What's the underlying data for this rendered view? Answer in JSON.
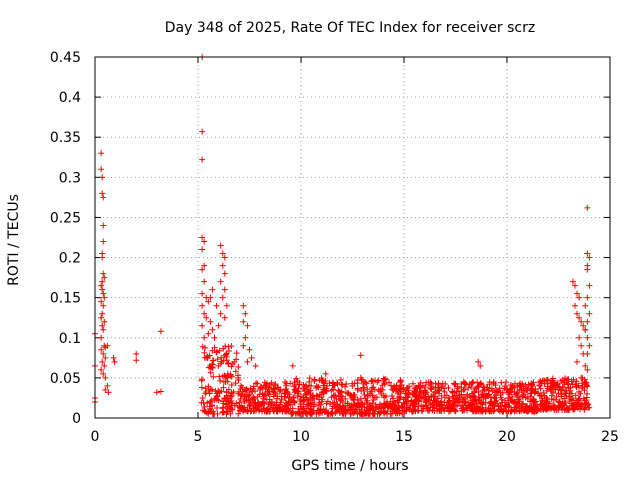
{
  "chart_data": {
    "type": "scatter",
    "title": "Day 348 of 2025, Rate Of TEC Index for receiver scrz",
    "xlabel": "GPS time / hours",
    "ylabel": "ROTI / TECUs",
    "xlim": [
      0,
      25
    ],
    "ylim": [
      0,
      0.45
    ],
    "xticks": [
      0,
      5,
      10,
      15,
      20,
      25
    ],
    "yticks": [
      0,
      0.05,
      0.1,
      0.15,
      0.2,
      0.25,
      0.3,
      0.35,
      0.4,
      0.45
    ],
    "grid": true,
    "marker": "+",
    "color": "#ff0000",
    "series": [
      {
        "name": "ROTI",
        "points": [
          [
            0.0,
            0.065
          ],
          [
            0.0,
            0.025
          ],
          [
            0.0,
            0.02
          ],
          [
            0.0,
            0.105
          ],
          [
            0.3,
            0.33
          ],
          [
            0.3,
            0.31
          ],
          [
            0.35,
            0.3
          ],
          [
            0.35,
            0.28
          ],
          [
            0.4,
            0.275
          ],
          [
            0.4,
            0.24
          ],
          [
            0.4,
            0.22
          ],
          [
            0.35,
            0.205
          ],
          [
            0.35,
            0.2
          ],
          [
            0.4,
            0.18
          ],
          [
            0.45,
            0.175
          ],
          [
            0.35,
            0.17
          ],
          [
            0.3,
            0.165
          ],
          [
            0.35,
            0.16
          ],
          [
            0.4,
            0.155
          ],
          [
            0.45,
            0.15
          ],
          [
            0.3,
            0.145
          ],
          [
            0.4,
            0.14
          ],
          [
            0.35,
            0.13
          ],
          [
            0.3,
            0.125
          ],
          [
            0.45,
            0.12
          ],
          [
            0.35,
            0.115
          ],
          [
            0.4,
            0.11
          ],
          [
            0.3,
            0.1
          ],
          [
            0.45,
            0.09
          ],
          [
            0.5,
            0.088
          ],
          [
            0.6,
            0.09
          ],
          [
            0.3,
            0.085
          ],
          [
            0.4,
            0.08
          ],
          [
            0.5,
            0.075
          ],
          [
            0.35,
            0.07
          ],
          [
            0.45,
            0.065
          ],
          [
            0.3,
            0.06
          ],
          [
            0.4,
            0.055
          ],
          [
            0.5,
            0.05
          ],
          [
            0.6,
            0.04
          ],
          [
            0.65,
            0.032
          ],
          [
            0.5,
            0.035
          ],
          [
            0.9,
            0.075
          ],
          [
            0.95,
            0.07
          ],
          [
            2.0,
            0.08
          ],
          [
            2.0,
            0.072
          ],
          [
            3.0,
            0.032
          ],
          [
            3.2,
            0.033
          ],
          [
            3.2,
            0.108
          ],
          [
            5.2,
            0.45
          ],
          [
            5.2,
            0.357
          ],
          [
            5.2,
            0.322
          ],
          [
            5.2,
            0.225
          ],
          [
            5.3,
            0.22
          ],
          [
            5.2,
            0.21
          ],
          [
            5.3,
            0.19
          ],
          [
            5.2,
            0.185
          ],
          [
            5.3,
            0.17
          ],
          [
            5.2,
            0.155
          ],
          [
            5.4,
            0.15
          ],
          [
            5.5,
            0.145
          ],
          [
            5.2,
            0.14
          ],
          [
            5.3,
            0.13
          ],
          [
            5.4,
            0.125
          ],
          [
            5.6,
            0.12
          ],
          [
            5.2,
            0.115
          ],
          [
            5.7,
            0.11
          ],
          [
            5.5,
            0.105
          ],
          [
            5.3,
            0.1
          ],
          [
            5.8,
            0.1
          ],
          [
            5.6,
            0.15
          ],
          [
            5.7,
            0.16
          ],
          [
            5.9,
            0.14
          ],
          [
            6.1,
            0.215
          ],
          [
            6.2,
            0.205
          ],
          [
            6.3,
            0.2
          ],
          [
            6.2,
            0.19
          ],
          [
            6.3,
            0.18
          ],
          [
            6.1,
            0.17
          ],
          [
            6.3,
            0.16
          ],
          [
            6.2,
            0.15
          ],
          [
            6.4,
            0.14
          ],
          [
            6.1,
            0.13
          ],
          [
            6.3,
            0.125
          ],
          [
            6.0,
            0.115
          ],
          [
            7.2,
            0.14
          ],
          [
            7.3,
            0.13
          ],
          [
            7.2,
            0.12
          ],
          [
            7.4,
            0.115
          ],
          [
            7.3,
            0.1
          ],
          [
            7.2,
            0.09
          ],
          [
            7.5,
            0.085
          ],
          [
            7.6,
            0.075
          ],
          [
            7.8,
            0.065
          ],
          [
            7.4,
            0.07
          ],
          [
            9.6,
            0.065
          ],
          [
            10.4,
            0.045
          ],
          [
            11.2,
            0.055
          ],
          [
            12.9,
            0.078
          ],
          [
            12.9,
            0.05
          ],
          [
            18.6,
            0.07
          ],
          [
            18.7,
            0.065
          ],
          [
            23.2,
            0.17
          ],
          [
            23.3,
            0.165
          ],
          [
            23.4,
            0.155
          ],
          [
            23.5,
            0.15
          ],
          [
            23.3,
            0.14
          ],
          [
            23.4,
            0.13
          ],
          [
            23.5,
            0.125
          ],
          [
            23.6,
            0.12
          ],
          [
            23.7,
            0.115
          ],
          [
            23.8,
            0.11
          ],
          [
            23.5,
            0.1
          ],
          [
            23.6,
            0.09
          ],
          [
            23.7,
            0.08
          ],
          [
            23.4,
            0.07
          ],
          [
            23.8,
            0.065
          ],
          [
            23.9,
            0.06
          ],
          [
            23.6,
            0.05
          ],
          [
            23.9,
            0.262
          ],
          [
            23.9,
            0.205
          ],
          [
            24.0,
            0.2
          ],
          [
            23.9,
            0.19
          ],
          [
            23.9,
            0.185
          ],
          [
            24.0,
            0.165
          ],
          [
            23.9,
            0.15
          ],
          [
            23.8,
            0.14
          ],
          [
            24.0,
            0.13
          ],
          [
            23.9,
            0.12
          ],
          [
            23.8,
            0.11
          ],
          [
            23.9,
            0.1
          ],
          [
            24.0,
            0.09
          ],
          [
            23.9,
            0.08
          ]
        ],
        "dense_band": {
          "description_ranges": [
            {
              "x": [
                5.15,
                7.0
              ],
              "y": [
                0.005,
                0.09
              ]
            },
            {
              "x": [
                7.0,
                9.5
              ],
              "y": [
                0.008,
                0.045
              ]
            },
            {
              "x": [
                9.5,
                15.0
              ],
              "y": [
                0.005,
                0.05
              ]
            },
            {
              "x": [
                15.0,
                21.5
              ],
              "y": [
                0.008,
                0.045
              ]
            },
            {
              "x": [
                21.5,
                24.0
              ],
              "y": [
                0.01,
                0.05
              ]
            }
          ],
          "count_per_hour": 90
        }
      }
    ]
  }
}
